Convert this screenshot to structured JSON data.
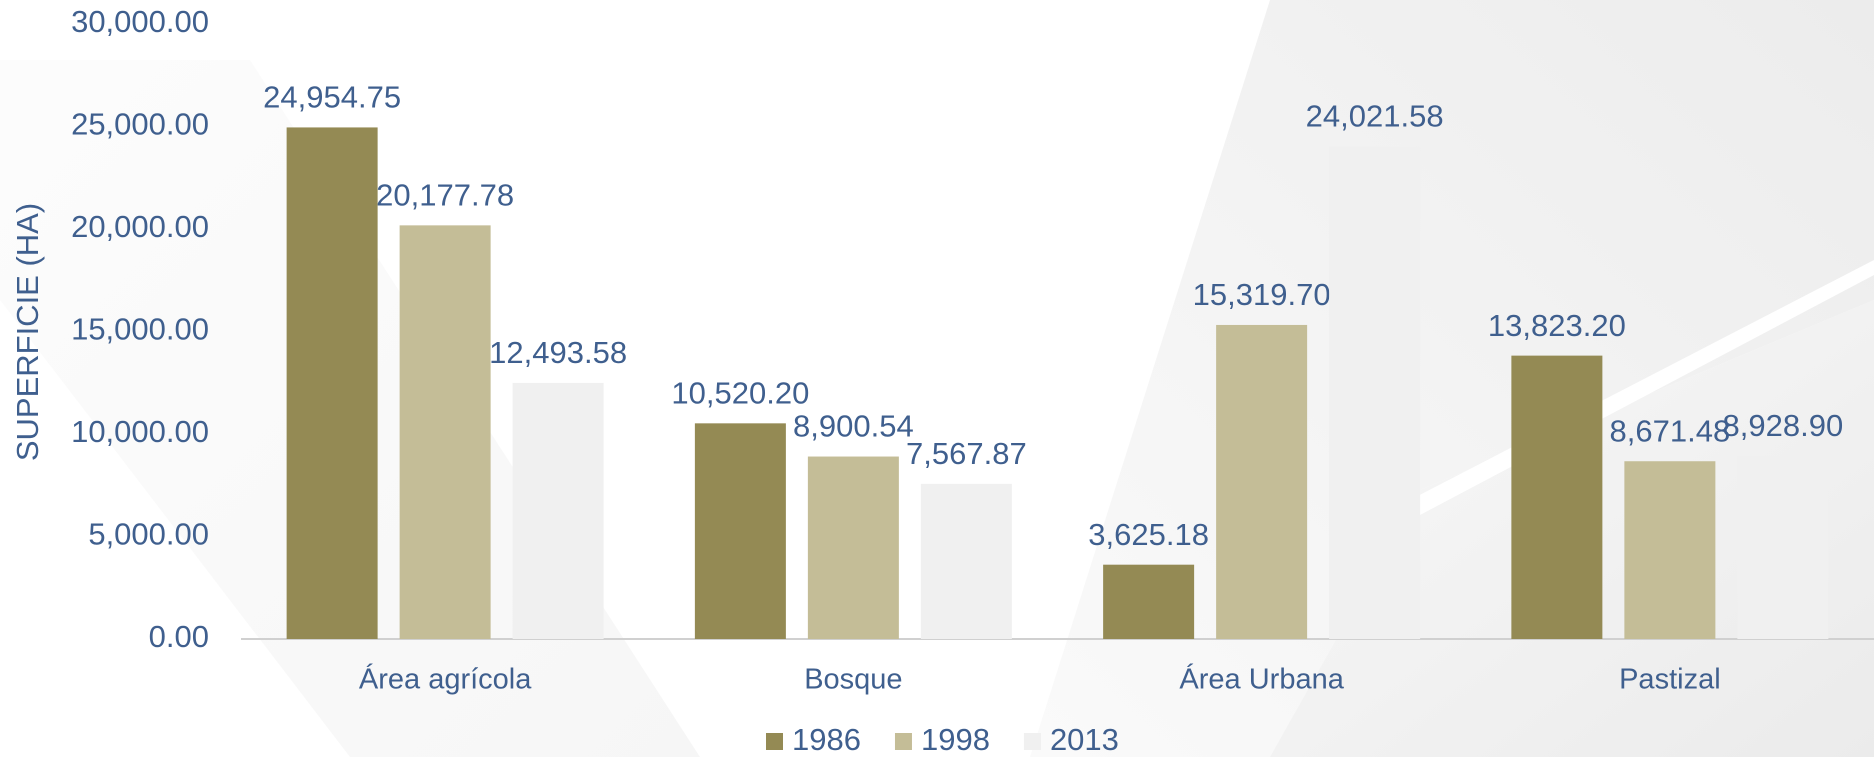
{
  "chart_data": {
    "type": "bar",
    "y_label": "SUPERFICIE (HA)",
    "categories": [
      "Área agrícola",
      "Bosque",
      "Área Urbana",
      "Pastizal"
    ],
    "series": [
      {
        "name": "1986",
        "color": "#948a54",
        "values": [
          24954.75,
          10520.2,
          3625.18,
          13823.2
        ],
        "value_labels": [
          "24,954.75",
          "10,520.20",
          "3,625.18",
          "13,823.20"
        ]
      },
      {
        "name": "1998",
        "color": "#c4bd97",
        "values": [
          20177.78,
          8900.54,
          15319.7,
          8671.48
        ],
        "value_labels": [
          "20,177.78",
          "8,900.54",
          "15,319.70",
          "8,671.48"
        ]
      },
      {
        "name": "2013",
        "color": "#f0f0f0",
        "values": [
          12493.58,
          7567.87,
          24021.58,
          8928.9
        ],
        "value_labels": [
          "12,493.58",
          "7,567.87",
          "24,021.58",
          "8,928.90"
        ]
      }
    ],
    "ylim": [
      0,
      30000
    ],
    "yticks": [
      {
        "value": 0,
        "label": "0.00"
      },
      {
        "value": 5000,
        "label": "5,000.00"
      },
      {
        "value": 10000,
        "label": "10,000.00"
      },
      {
        "value": 15000,
        "label": "15,000.00"
      },
      {
        "value": 20000,
        "label": "20,000.00"
      },
      {
        "value": 25000,
        "label": "25,000.00"
      },
      {
        "value": 30000,
        "label": "30,000.00"
      }
    ],
    "legend": "bottom"
  }
}
